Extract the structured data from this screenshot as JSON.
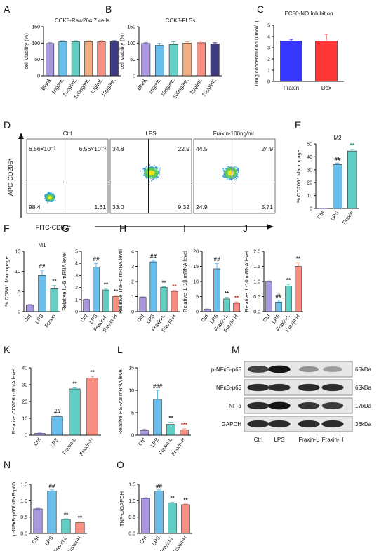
{
  "colors": {
    "purple": "#9b86d9",
    "blue": "#4fb3e8",
    "teal": "#47c6b8",
    "salmon": "#f47b6b",
    "orange": "#f0a06a",
    "navy": "#1f1a6e",
    "pure_blue": "#1414ff",
    "pure_red": "#ff1414",
    "sig_green": "#1a9e6e",
    "sig_red": "#c0392b",
    "sig_dark": "#222222"
  },
  "panel_letters": [
    "A",
    "B",
    "C",
    "D",
    "E",
    "F",
    "G",
    "H",
    "I",
    "J",
    "K",
    "L",
    "M",
    "N",
    "O"
  ],
  "chart_data": [
    {
      "id": "A",
      "type": "bar",
      "title": "CCK8-Raw264.7 cells",
      "ylabel": "cell viability (%)",
      "categories": [
        "Blank",
        "1ng/mL",
        "10ng/mL",
        "100ng/mL",
        "1μg/mL",
        "10μg/mL"
      ],
      "values": [
        99,
        104,
        104,
        104,
        104,
        104
      ],
      "errors": [
        3,
        3,
        3,
        3,
        3,
        3
      ],
      "ylim": [
        0,
        150
      ],
      "yticks": [
        0,
        50,
        100,
        150
      ],
      "colors": [
        "purple",
        "blue",
        "teal",
        "orange",
        "salmon",
        "navy"
      ],
      "sig": [
        "",
        "",
        "",
        "",
        "",
        ""
      ]
    },
    {
      "id": "B",
      "type": "bar",
      "title": "CCK8-FLSs",
      "ylabel": "cell viability (%)",
      "categories": [
        "Blank",
        "1ng/mL",
        "10ng/mL",
        "100ng/mL",
        "1μg/mL",
        "10μg/mL"
      ],
      "values": [
        99,
        93,
        96,
        100,
        101,
        98
      ],
      "errors": [
        3,
        6,
        8,
        4,
        5,
        3
      ],
      "ylim": [
        0,
        150
      ],
      "yticks": [
        0,
        50,
        100,
        150
      ],
      "colors": [
        "purple",
        "blue",
        "teal",
        "orange",
        "salmon",
        "navy"
      ],
      "sig": [
        "",
        "",
        "",
        "",
        "",
        ""
      ]
    },
    {
      "id": "C",
      "type": "bar",
      "title": "EC50-NO Inhibition",
      "ylabel": "Drug concentration (umol/L)",
      "categories": [
        "Fraxin",
        "Dex"
      ],
      "values": [
        3.6,
        3.6
      ],
      "errors": [
        0.15,
        0.6
      ],
      "ylim": [
        0,
        5
      ],
      "yticks": [
        0,
        1,
        2,
        3,
        4,
        5
      ],
      "colors": [
        "pure_blue",
        "pure_red"
      ],
      "sig": [
        "",
        ""
      ]
    },
    {
      "id": "E",
      "type": "bar",
      "title": "M2",
      "ylabel": "% CD206⁺ Macropage",
      "categories": [
        "Ctrl",
        "LPS",
        "Fraxin"
      ],
      "values": [
        0,
        34,
        44.5
      ],
      "errors": [
        0,
        1.2,
        1.2
      ],
      "ylim": [
        0,
        50
      ],
      "yticks": [
        0,
        10,
        20,
        30,
        40,
        50
      ],
      "colors": [
        "purple",
        "blue",
        "teal"
      ],
      "sig": [
        "",
        "##",
        "**"
      ]
    },
    {
      "id": "F",
      "type": "bar",
      "title": "M1",
      "ylabel": "% CD86⁺ Macropage",
      "categories": [
        "Ctrl",
        "LPS",
        "Fraxin"
      ],
      "values": [
        1.6,
        9,
        5.7
      ],
      "errors": [
        0.2,
        1.3,
        0.8
      ],
      "ylim": [
        0,
        15
      ],
      "yticks": [
        0,
        5,
        10,
        15
      ],
      "colors": [
        "purple",
        "blue",
        "teal"
      ],
      "sig": [
        "",
        "##",
        "**"
      ]
    },
    {
      "id": "G",
      "type": "bar",
      "ylabel": "Relative IL-6 mRNA level",
      "categories": [
        "Ctrl",
        "LPS",
        "Fraxin-L",
        "Fraxin-H"
      ],
      "values": [
        1,
        3.7,
        1.8,
        1.25
      ],
      "errors": [
        0.03,
        0.3,
        0.12,
        0.08
      ],
      "ylim": [
        0,
        5
      ],
      "yticks": [
        0,
        1,
        2,
        3,
        4,
        5
      ],
      "colors": [
        "purple",
        "blue",
        "teal",
        "salmon"
      ],
      "sig": [
        "",
        "##",
        "**",
        "**"
      ]
    },
    {
      "id": "H",
      "type": "bar",
      "ylabel": "Relative TNF-α mRNA level",
      "categories": [
        "Ctrl",
        "LPS",
        "Fraxin-L",
        "Fraxin-H"
      ],
      "values": [
        0.95,
        3.3,
        1.6,
        1.35
      ],
      "errors": [
        0.03,
        0.1,
        0.05,
        0.05
      ],
      "ylim": [
        0,
        4
      ],
      "yticks": [
        0,
        1,
        2,
        3,
        4
      ],
      "colors": [
        "purple",
        "blue",
        "teal",
        "salmon"
      ],
      "sig": [
        "",
        "##",
        "**",
        "**"
      ]
    },
    {
      "id": "I",
      "type": "bar",
      "ylabel": "Relative IL-1β mRNA level",
      "categories": [
        "Ctrl",
        "LPS",
        "Fraxin-L",
        "Fraxin-H"
      ],
      "values": [
        0.8,
        14.2,
        4.2,
        2.8
      ],
      "errors": [
        0.1,
        1.8,
        0.5,
        0.4
      ],
      "ylim": [
        0,
        20
      ],
      "yticks": [
        0,
        5,
        10,
        15,
        20
      ],
      "colors": [
        "purple",
        "blue",
        "teal",
        "salmon"
      ],
      "sig": [
        "",
        "##",
        "**",
        "**"
      ]
    },
    {
      "id": "J",
      "type": "bar",
      "ylabel": "Relative IL-10 mRNA level",
      "categories": [
        "Ctrl",
        "LPS",
        "Fraxin-L",
        "Fraxin-H"
      ],
      "values": [
        1,
        0.32,
        0.85,
        1.5
      ],
      "errors": [
        0.02,
        0.06,
        0.06,
        0.12
      ],
      "ylim": [
        0,
        2.0
      ],
      "yticks": [
        0,
        0.5,
        1.0,
        1.5,
        2.0
      ],
      "ytick_labels": [
        "0.0",
        "0.5",
        "1.0",
        "1.5",
        "2.0"
      ],
      "colors": [
        "purple",
        "blue",
        "teal",
        "salmon"
      ],
      "sig": [
        "",
        "##",
        "**",
        "**"
      ]
    },
    {
      "id": "K",
      "type": "bar",
      "ylabel": "Relative CD206 mRNA level",
      "categories": [
        "Ctrl",
        "LPS",
        "Fraxin-L",
        "Fraxin-H"
      ],
      "values": [
        1,
        11,
        27.5,
        34
      ],
      "errors": [
        0.3,
        0.6,
        0.6,
        1.0
      ],
      "ylim": [
        0,
        40
      ],
      "yticks": [
        0,
        10,
        20,
        30,
        40
      ],
      "colors": [
        "purple",
        "blue",
        "teal",
        "salmon"
      ],
      "sig": [
        "",
        "##",
        "**",
        "**"
      ]
    },
    {
      "id": "L",
      "type": "bar",
      "ylabel": "Relative HSPA8 mRNA level",
      "categories": [
        "Ctrl",
        "LPS",
        "Fraxin-L",
        "Fraxin-H"
      ],
      "values": [
        1,
        8,
        2.4,
        1.2
      ],
      "errors": [
        0.3,
        2.0,
        0.5,
        0.2
      ],
      "ylim": [
        0,
        15
      ],
      "yticks": [
        0,
        5,
        10,
        15
      ],
      "colors": [
        "purple",
        "blue",
        "teal",
        "salmon"
      ],
      "sig": [
        "",
        "###",
        "**",
        "***"
      ]
    },
    {
      "id": "N",
      "type": "bar",
      "ylabel": "p-NFκB-p65/NFκB-p65",
      "categories": [
        "Ctrl",
        "LPS",
        "Fraxin-L",
        "Fraxin-H"
      ],
      "values": [
        0.75,
        1.3,
        0.43,
        0.33
      ],
      "errors": [
        0.02,
        0.03,
        0.02,
        0.02
      ],
      "ylim": [
        0,
        1.5
      ],
      "yticks": [
        0,
        0.5,
        1.0,
        1.5
      ],
      "ytick_labels": [
        "0.0",
        "0.5",
        "1.0",
        "1.5"
      ],
      "colors": [
        "purple",
        "blue",
        "teal",
        "salmon"
      ],
      "sig": [
        "",
        "##",
        "**",
        "**"
      ]
    },
    {
      "id": "O",
      "type": "bar",
      "ylabel": "TNF-α/GAPDH",
      "categories": [
        "Ctrl",
        "LPS",
        "Fraxin-L",
        "Fraxin-H"
      ],
      "values": [
        1.07,
        1.3,
        0.93,
        0.88
      ],
      "errors": [
        0.02,
        0.03,
        0.02,
        0.02
      ],
      "ylim": [
        0,
        1.5
      ],
      "yticks": [
        0,
        0.5,
        1.0,
        1.5
      ],
      "ytick_labels": [
        "0.0",
        "0.5",
        "1.0",
        "1.5"
      ],
      "colors": [
        "purple",
        "blue",
        "teal",
        "salmon"
      ],
      "sig": [
        "",
        "##",
        "**",
        "**"
      ]
    }
  ],
  "flow": {
    "y_axis_label": "APC-CD206⁺",
    "x_axis_label": "FITC-CD86⁺",
    "plots": [
      {
        "title": "Ctrl",
        "quadrants": [
          "6.56×10⁻³",
          "6.56×10⁻³",
          "98.4",
          "1.61"
        ]
      },
      {
        "title": "LPS",
        "quadrants": [
          "34.8",
          "22.9",
          "33.0",
          "9.32"
        ]
      },
      {
        "title": "Fraxin-100ng/mL",
        "quadrants": [
          "44.5",
          "24.9",
          "24.9",
          "5.71"
        ]
      }
    ]
  },
  "western_blot": {
    "rows": [
      {
        "label": "p-NFκB-p65",
        "size": "65kDa",
        "intensities": [
          0.75,
          0.95,
          0.4,
          0.35
        ]
      },
      {
        "label": "NFκB-p65",
        "size": "65kDa",
        "intensities": [
          0.85,
          0.85,
          0.85,
          0.85
        ]
      },
      {
        "label": "TNF-α",
        "size": "17kDa",
        "intensities": [
          0.85,
          0.95,
          0.8,
          0.78
        ]
      },
      {
        "label": "GAPDH",
        "size": "36kDa",
        "intensities": [
          0.85,
          0.85,
          0.85,
          0.85
        ]
      }
    ],
    "lanes": [
      "Ctrl",
      "LPS",
      "Fraxin-L",
      "Fraxin-H"
    ]
  }
}
